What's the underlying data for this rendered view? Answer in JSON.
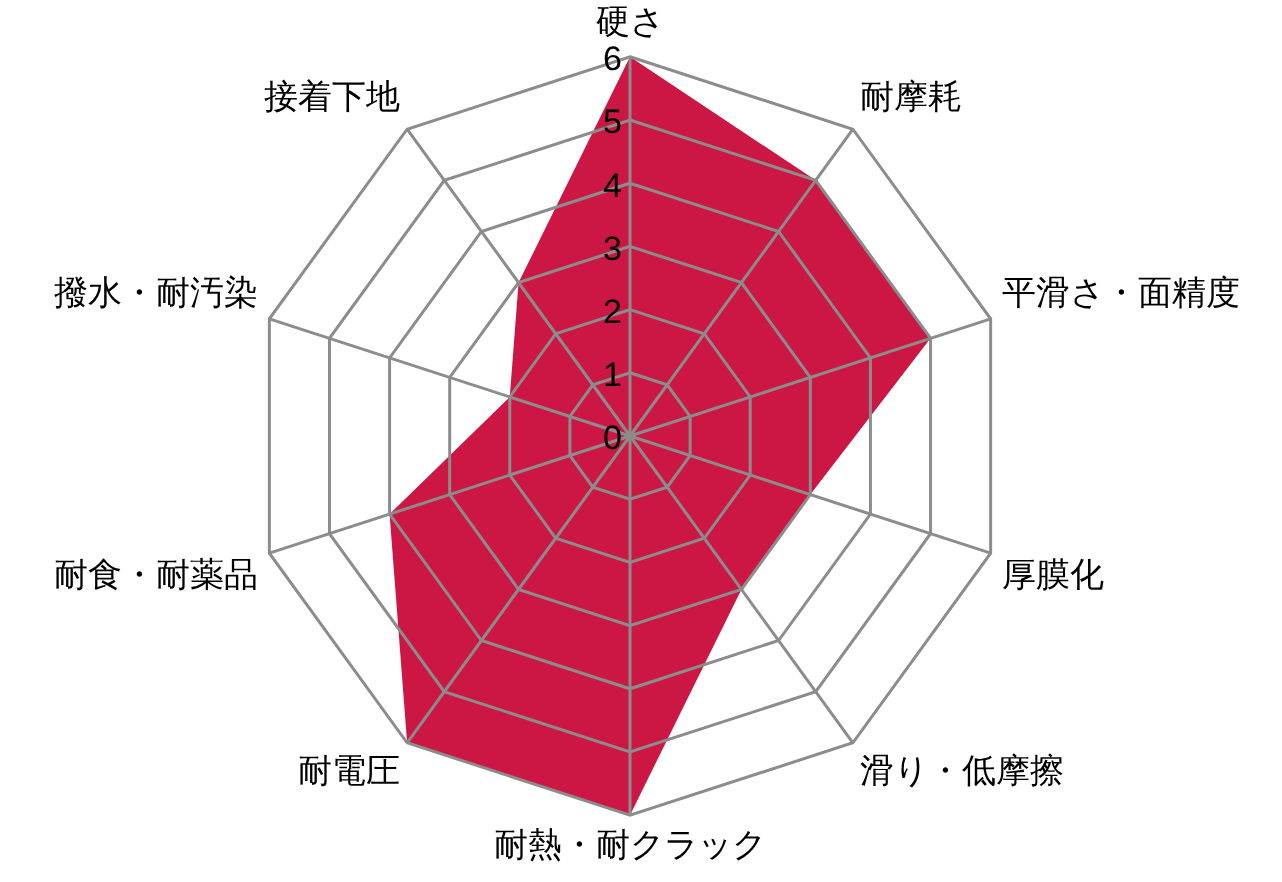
{
  "chart_data": {
    "type": "radar",
    "categories": [
      "硬さ",
      "耐摩耗",
      "平滑さ・面精度",
      "厚膜化",
      "滑り・低摩擦",
      "耐熱・耐クラック",
      "耐電圧",
      "耐食・耐薬品",
      "撥水・耐汚染",
      "接着下地"
    ],
    "series": [
      {
        "color": "#cc1744",
        "values": [
          6,
          5,
          5,
          3,
          3,
          6,
          6,
          4,
          2,
          3
        ]
      }
    ],
    "ylim": [
      0,
      6
    ],
    "yticks": [
      0,
      1,
      2,
      3,
      4,
      5,
      6
    ],
    "grid": true,
    "legend": false
  }
}
